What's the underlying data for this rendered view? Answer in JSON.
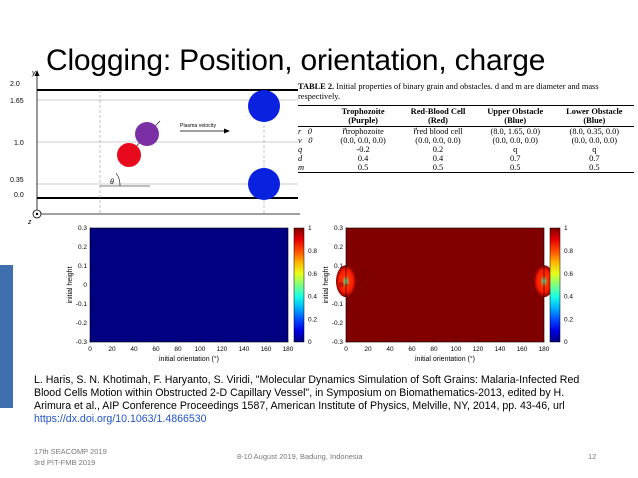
{
  "slide": {
    "title": "Clogging: Position, orientation, charge",
    "page_number": "12"
  },
  "diagram": {
    "y_axis_label": "y",
    "x_axis_label": "x",
    "z_axis_label": "z",
    "y_ticks": [
      "2.0",
      "1.65",
      "1.0",
      "0.35",
      "0.0"
    ],
    "plasma_label": "Plasma velocity",
    "angle_label": "θ",
    "colors": {
      "purple": "#7a2fa5",
      "red": "#e8091d",
      "blue": "#0a22e0"
    }
  },
  "table": {
    "caption_bold": "TABLE 2.",
    "caption_text": "Initial properties of binary grain and obstacles. d and m are diameter and mass respectively.",
    "headers": [
      "",
      "Trophozoite (Purple)",
      "Red-Blood Cell (Red)",
      "Upper Obstacle (Blue)",
      "Lower Obstacle (Blue)"
    ],
    "rows": [
      [
        "r⃗0",
        "r⃗trophozoite",
        "r⃗red blood cell",
        "(8.0, 1.65, 0.0)",
        "(8.0, 0.35, 0.0)"
      ],
      [
        "v⃗0",
        "(0.0, 0.0, 0.0)",
        "(0.0, 0.0, 0.0)",
        "(0.0, 0.0, 0.0)",
        "(0.0, 0.0, 0.0)"
      ],
      [
        "q",
        "-0.2",
        "0.2",
        "q",
        "q"
      ],
      [
        "d",
        "0.4",
        "0.4",
        "0.7",
        "0.7"
      ],
      [
        "m",
        "0.5",
        "0.5",
        "0.5",
        "0.5"
      ]
    ]
  },
  "chart_data": [
    {
      "type": "heatmap",
      "title": "",
      "xlabel": "initial orientation (°)",
      "ylabel": "initial height",
      "xlim": [
        0,
        180
      ],
      "ylim": [
        -0.3,
        0.3
      ],
      "x_ticks": [
        "0",
        "20",
        "40",
        "60",
        "80",
        "100",
        "120",
        "140",
        "160",
        "180"
      ],
      "y_ticks": [
        "0.3",
        "0.2",
        "0.1",
        "0",
        "-0.1",
        "-0.2",
        "-0.3"
      ],
      "colorbar_ticks": [
        "1",
        "0.8",
        "0.6",
        "0.4",
        "0.2",
        "0"
      ],
      "colorbar_range": [
        0,
        1
      ],
      "fill_value": 0,
      "hotspots": []
    },
    {
      "type": "heatmap",
      "title": "",
      "xlabel": "initial orientation (°)",
      "ylabel": "initial height",
      "xlim": [
        0,
        180
      ],
      "ylim": [
        -0.3,
        0.3
      ],
      "x_ticks": [
        "0",
        "20",
        "40",
        "60",
        "80",
        "100",
        "120",
        "140",
        "160",
        "180"
      ],
      "y_ticks": [
        "0.3",
        "0.2",
        "0.1",
        "0",
        "-0.1",
        "-0.2",
        "-0.3"
      ],
      "colorbar_ticks": [
        "1",
        "0.8",
        "0.6",
        "0.4",
        "0.2",
        "0"
      ],
      "colorbar_range": [
        0,
        1
      ],
      "fill_value": 1,
      "hotspots": [
        {
          "x": 0,
          "y": 0.02,
          "value": 0.45
        },
        {
          "x": 180,
          "y": 0.02,
          "value": 0.45
        }
      ]
    }
  ],
  "reference": {
    "text": "L. Haris, S. N. Khotimah, F. Haryanto, S. Viridi, \"Molecular Dynamics Simulation of Soft Grains: Malaria-Infected Red Blood Cells Motion within Obstructed 2-D Capillary Vessel\", in Symposium on Biomathematics-2013, edited by H. Arimura et al., AIP Conference Proceedings 1587, American Institute of Physics, Melville, NY, 2014, pp. 43-46, url",
    "link": "https://dx.doi.org/10.1063/1.4866530"
  },
  "footer": {
    "line1": "17th SEACOMP 2019",
    "line2": "3rd PIT-FMB 2019",
    "event": "8-10 August 2019, Badung, Indonesia"
  }
}
